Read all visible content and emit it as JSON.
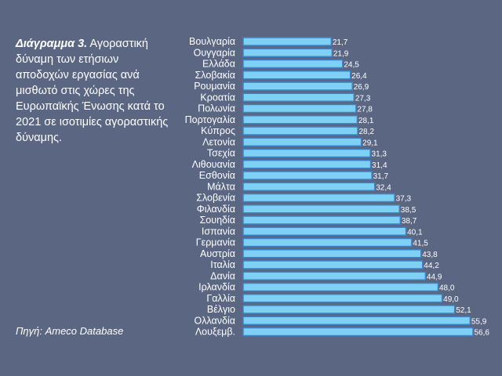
{
  "caption": {
    "lead": "Διάγραμμα 3.",
    "text": " Αγοραστική δύναμη των ετήσιων αποδοχών εργασίας ανά μισθωτό στις χώρες της Ευρωπαϊκής Ένωσης κατά το 2021 σε ισοτιμίες αγοραστικής δύναμης."
  },
  "source": "Πηγή: Ameco Database",
  "colors": {
    "background": "#5b6782",
    "bar_fill": "#7fd0f5",
    "bar_stroke": "#3d82c4",
    "text": "#ffffff"
  },
  "chart_data": {
    "type": "bar",
    "orientation": "horizontal",
    "categories": [
      "Βουλγαρία",
      "Ουγγαρία",
      "Ελλάδα",
      "Σλοβακία",
      "Ρουμανία",
      "Κροατία",
      "Πολωνία",
      "Πορτογαλία",
      "Κύπρος",
      "Λετονία",
      "Τσεχία",
      "Λιθουανία",
      "Εσθονία",
      "Μάλτα",
      "Σλοβενία",
      "Φιλανδία",
      "Σουηδία",
      "Ισπανία",
      "Γερμανία",
      "Αυστρία",
      "Ιταλία",
      "Δανία",
      "Ιρλανδία",
      "Γαλλία",
      "Βέλγιο",
      "Ολλανδία",
      "Λουξεμβ."
    ],
    "values": [
      21.7,
      21.9,
      24.5,
      26.4,
      26.9,
      27.3,
      27.8,
      28.1,
      28.2,
      29.1,
      31.3,
      31.4,
      31.7,
      32.4,
      37.3,
      38.5,
      38.7,
      40.1,
      41.5,
      43.8,
      44.2,
      44.9,
      48.0,
      49.0,
      52.1,
      55.9,
      56.6
    ],
    "value_labels": [
      "21,7",
      "21,9",
      "24,5",
      "26,4",
      "26,9",
      "27,3",
      "27,8",
      "28,1",
      "28,2",
      "29,1",
      "31,3",
      "31,4",
      "31,7",
      "32,4",
      "37,3",
      "38,5",
      "38,7",
      "40,1",
      "41,5",
      "43,8",
      "44,2",
      "44,9",
      "48,0",
      "49,0",
      "52,1",
      "55,9",
      "56,6"
    ],
    "xlim": [
      0,
      56.6
    ],
    "grid": false,
    "legend": "none"
  }
}
